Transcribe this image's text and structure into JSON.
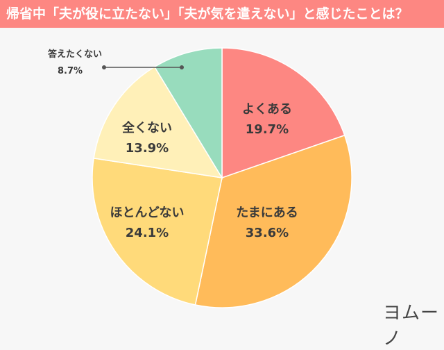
{
  "header": {
    "title": "帰省中「夫が役に立たない」「夫が気を遣えない」と感じたことは？"
  },
  "chart_data": {
    "type": "pie",
    "title": "帰省中「夫が役に立たない」「夫が気を遣えない」と感じたことは？",
    "start": "top",
    "direction": "clockwise",
    "slices": [
      {
        "label": "よくある",
        "value": 19.7,
        "display": "19.7%",
        "color": "#fd8782"
      },
      {
        "label": "たまにある",
        "value": 33.6,
        "display": "33.6%",
        "color": "#ffbb5a"
      },
      {
        "label": "ほとんどない",
        "value": 24.1,
        "display": "24.1%",
        "color": "#ffda7a"
      },
      {
        "label": "全くない",
        "value": 13.9,
        "display": "13.9%",
        "color": "#fff0b8"
      },
      {
        "label": "答えたくない",
        "value": 8.7,
        "display": "8.7%",
        "color": "#98dcbd"
      }
    ]
  },
  "logo": {
    "text": "ヨムーノ"
  }
}
